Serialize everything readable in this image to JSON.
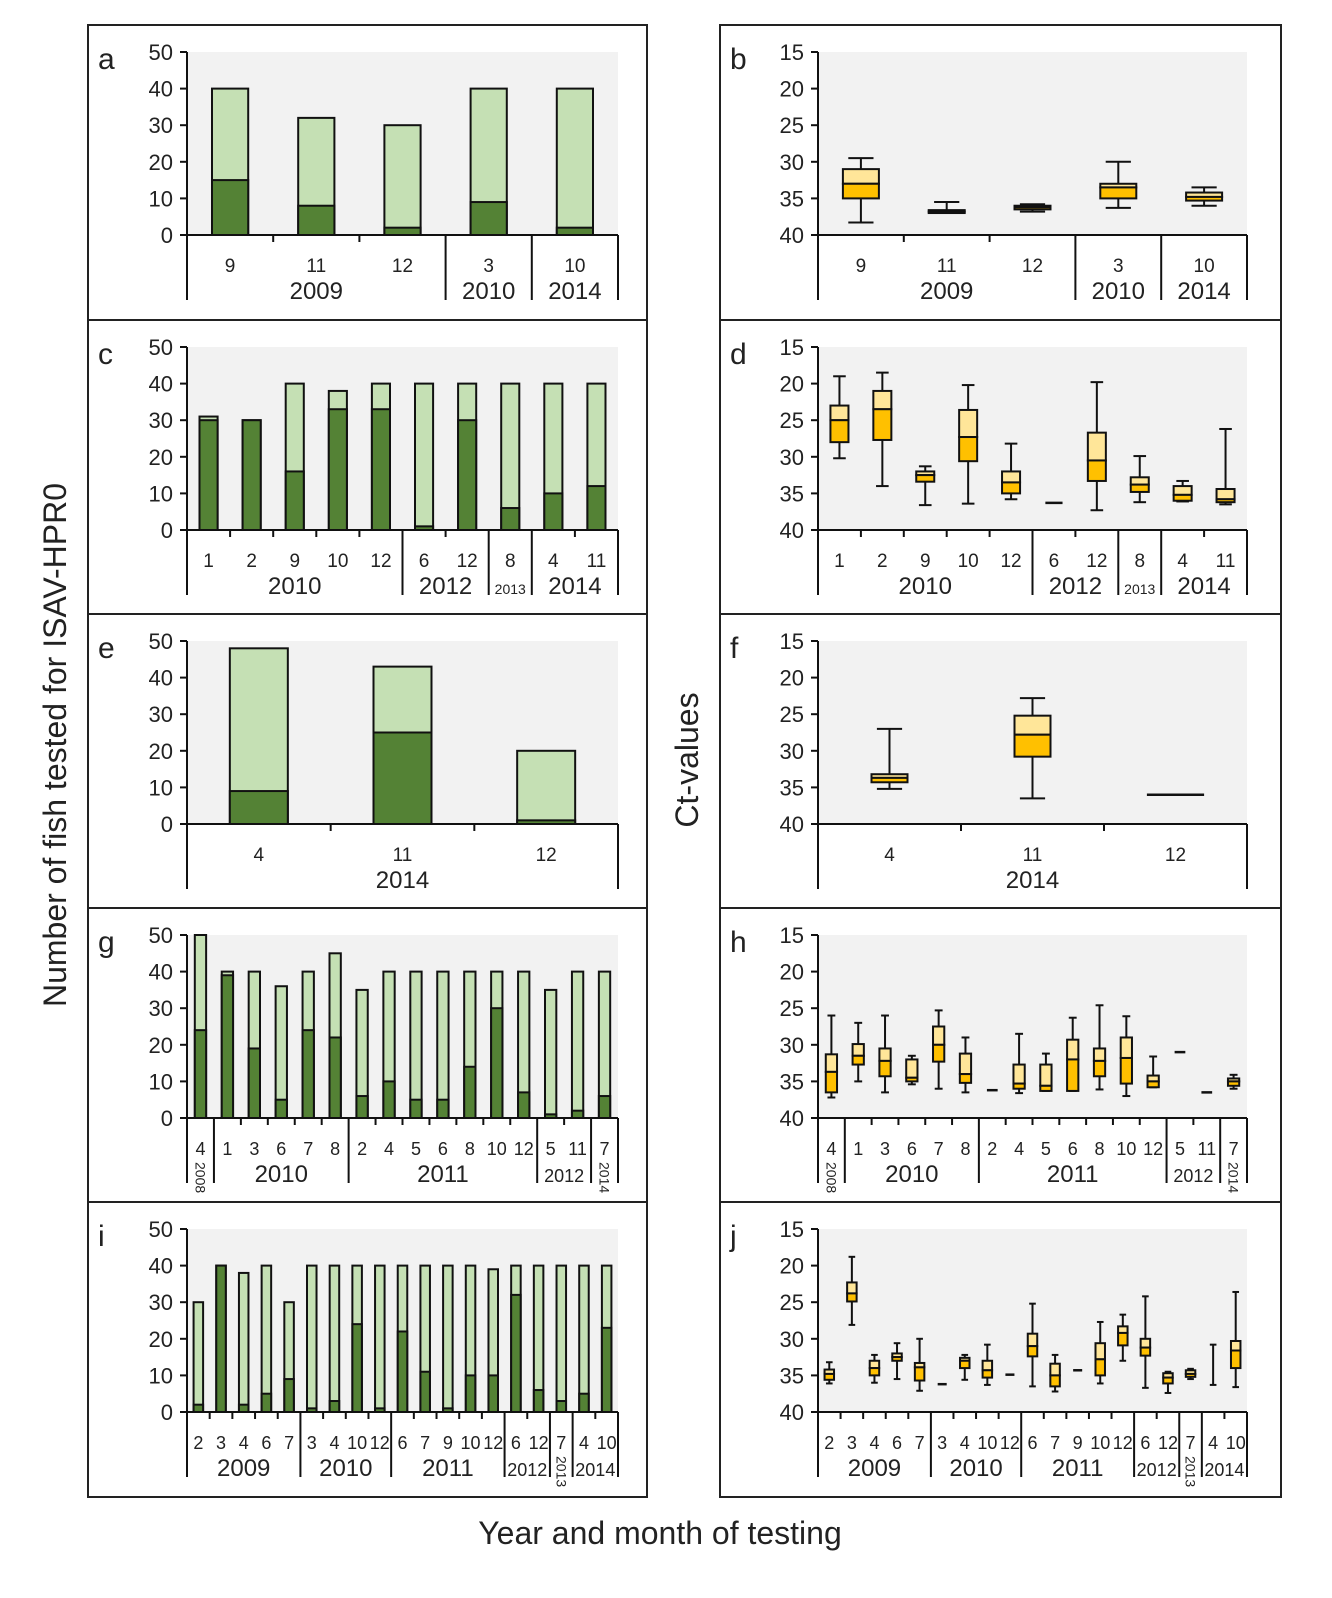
{
  "figure": {
    "left_ylabel": "Number of fish tested for ISAV-HPR0",
    "right_ylabel": "Ct-values",
    "xlabel": "Year and month of testing"
  },
  "colors": {
    "bar_positive": "#548235",
    "bar_total": "#c5e0b4",
    "box_upper": "#ffe699",
    "box_lower": "#ffc000",
    "plot_bg": "#f2f2f2"
  },
  "chart_data": [
    {
      "panel": "a",
      "type": "bar",
      "ylim": [
        0,
        50
      ],
      "yticks": [
        "0",
        "10",
        "20",
        "30",
        "40",
        "50"
      ],
      "groups": [
        {
          "year": "2009",
          "style": "normal",
          "months": [
            "9",
            "11",
            "12"
          ]
        },
        {
          "year": "2010",
          "style": "normal",
          "months": [
            "3"
          ]
        },
        {
          "year": "2014",
          "style": "normal",
          "months": [
            "10"
          ]
        }
      ],
      "series": [
        {
          "name": "tested",
          "values": [
            40,
            32,
            30,
            40,
            40
          ]
        },
        {
          "name": "positive",
          "values": [
            15,
            8,
            2,
            9,
            2
          ]
        }
      ]
    },
    {
      "panel": "b",
      "type": "box",
      "ylim": [
        40,
        15
      ],
      "yticks": [
        "15",
        "20",
        "25",
        "30",
        "35",
        "40"
      ],
      "groups": [
        {
          "year": "2009",
          "style": "normal",
          "months": [
            "9",
            "11",
            "12"
          ]
        },
        {
          "year": "2010",
          "style": "normal",
          "months": [
            "3"
          ]
        },
        {
          "year": "2014",
          "style": "normal",
          "months": [
            "10"
          ]
        }
      ],
      "boxes": [
        [
          29.5,
          31,
          33,
          35,
          38.3
        ],
        [
          35.5,
          36.6,
          36.8,
          37,
          37
        ],
        [
          35.8,
          36,
          36.2,
          36.5,
          36.8
        ],
        [
          30,
          33,
          33.5,
          35,
          36.3
        ],
        [
          33.5,
          34.2,
          34.8,
          35.3,
          36
        ]
      ]
    },
    {
      "panel": "c",
      "type": "bar",
      "ylim": [
        0,
        50
      ],
      "yticks": [
        "0",
        "10",
        "20",
        "30",
        "40",
        "50"
      ],
      "groups": [
        {
          "year": "2010",
          "style": "normal",
          "months": [
            "1",
            "2",
            "9",
            "10",
            "12"
          ]
        },
        {
          "year": "2012",
          "style": "normal",
          "months": [
            "6",
            "12"
          ]
        },
        {
          "year": "2013",
          "style": "small",
          "months": [
            "8"
          ]
        },
        {
          "year": "2014",
          "style": "normal",
          "months": [
            "4",
            "11"
          ]
        }
      ],
      "series": [
        {
          "name": "tested",
          "values": [
            31,
            30,
            40,
            38,
            40,
            40,
            40,
            40,
            40,
            40
          ]
        },
        {
          "name": "positive",
          "values": [
            30,
            30,
            16,
            33,
            33,
            1,
            30,
            6,
            10,
            12
          ]
        }
      ]
    },
    {
      "panel": "d",
      "type": "box",
      "ylim": [
        40,
        15
      ],
      "yticks": [
        "15",
        "20",
        "25",
        "30",
        "35",
        "40"
      ],
      "groups": [
        {
          "year": "2010",
          "style": "normal",
          "months": [
            "1",
            "2",
            "9",
            "10",
            "12"
          ]
        },
        {
          "year": "2012",
          "style": "normal",
          "months": [
            "6",
            "12"
          ]
        },
        {
          "year": "2013",
          "style": "small",
          "months": [
            "8"
          ]
        },
        {
          "year": "2014",
          "style": "normal",
          "months": [
            "4",
            "11"
          ]
        }
      ],
      "boxes": [
        [
          19,
          23,
          25,
          28,
          30.2
        ],
        [
          18.5,
          21,
          23.5,
          27.7,
          34
        ],
        [
          31.3,
          32,
          32.5,
          33.4,
          36.6
        ],
        [
          20.2,
          23.6,
          27.3,
          30.6,
          36.4
        ],
        [
          28.2,
          32,
          33.5,
          35,
          35.8
        ],
        36.3,
        [
          19.8,
          26.7,
          30.5,
          33.3,
          37.3
        ],
        [
          29.9,
          32.8,
          33.8,
          34.8,
          36.2
        ],
        [
          33.3,
          34,
          35.2,
          36,
          36.1
        ],
        [
          26.2,
          34.4,
          35.8,
          36.2,
          36.5
        ]
      ]
    },
    {
      "panel": "e",
      "type": "bar",
      "ylim": [
        0,
        50
      ],
      "yticks": [
        "0",
        "10",
        "20",
        "30",
        "40",
        "50"
      ],
      "groups": [
        {
          "year": "2014",
          "style": "normal",
          "months": [
            "4",
            "11",
            "12"
          ]
        }
      ],
      "series": [
        {
          "name": "tested",
          "values": [
            48,
            43,
            20
          ]
        },
        {
          "name": "positive",
          "values": [
            9,
            25,
            1
          ]
        }
      ]
    },
    {
      "panel": "f",
      "type": "box",
      "ylim": [
        40,
        15
      ],
      "yticks": [
        "15",
        "20",
        "25",
        "30",
        "35",
        "40"
      ],
      "groups": [
        {
          "year": "2014",
          "style": "normal",
          "months": [
            "4",
            "11",
            "12"
          ]
        }
      ],
      "boxes": [
        [
          27,
          33.2,
          33.7,
          34.3,
          35.2
        ],
        [
          22.8,
          25.2,
          27.8,
          30.8,
          36.5
        ],
        36
      ]
    },
    {
      "panel": "g",
      "type": "bar",
      "ylim": [
        0,
        50
      ],
      "yticks": [
        "0",
        "10",
        "20",
        "30",
        "40",
        "50"
      ],
      "groups": [
        {
          "year": "2008",
          "style": "vertical",
          "months": [
            "4"
          ]
        },
        {
          "year": "2010",
          "style": "normal",
          "months": [
            "1",
            "3",
            "6",
            "7",
            "8"
          ]
        },
        {
          "year": "2011",
          "style": "normal",
          "months": [
            "2",
            "4",
            "5",
            "6",
            "8",
            "10",
            "12"
          ]
        },
        {
          "year": "2012",
          "style": "small",
          "months": [
            "5",
            "11"
          ]
        },
        {
          "year": "2014",
          "style": "vertical",
          "months": [
            "7"
          ]
        }
      ],
      "series": [
        {
          "name": "tested",
          "values": [
            50,
            40,
            40,
            36,
            40,
            45,
            35,
            40,
            40,
            40,
            40,
            40,
            40,
            35,
            40,
            40
          ]
        },
        {
          "name": "positive",
          "values": [
            24,
            39,
            19,
            5,
            24,
            22,
            6,
            10,
            5,
            5,
            14,
            30,
            7,
            1,
            2,
            6
          ]
        }
      ]
    },
    {
      "panel": "h",
      "type": "box",
      "ylim": [
        40,
        15
      ],
      "yticks": [
        "15",
        "20",
        "25",
        "30",
        "35",
        "40"
      ],
      "groups": [
        {
          "year": "2008",
          "style": "vertical",
          "months": [
            "4"
          ]
        },
        {
          "year": "2010",
          "style": "normal",
          "months": [
            "1",
            "3",
            "6",
            "7",
            "8"
          ]
        },
        {
          "year": "2011",
          "style": "normal",
          "months": [
            "2",
            "4",
            "5",
            "6",
            "8",
            "10",
            "12"
          ]
        },
        {
          "year": "2012",
          "style": "small",
          "months": [
            "5",
            "11"
          ]
        },
        {
          "year": "2014",
          "style": "vertical",
          "months": [
            "7"
          ]
        }
      ],
      "boxes": [
        [
          26,
          31.3,
          33.7,
          36.5,
          37.2
        ],
        [
          27,
          29.9,
          31.5,
          32.7,
          35
        ],
        [
          26,
          30.5,
          32.2,
          34.3,
          36.5
        ],
        [
          31.5,
          32,
          34.5,
          35,
          35.4
        ],
        [
          25.3,
          27.5,
          30,
          32.3,
          36
        ],
        [
          29,
          31.2,
          34,
          35.2,
          36.5
        ],
        36.2,
        [
          28.5,
          32.7,
          35.3,
          36,
          36.6
        ],
        [
          31.2,
          32.7,
          35.6,
          36.3,
          36.3
        ],
        [
          26.3,
          29.3,
          32,
          36.3,
          36.3
        ],
        [
          24.6,
          30.5,
          32.2,
          34.3,
          36.1
        ],
        [
          26.1,
          29,
          31.8,
          35.3,
          37
        ],
        [
          31.6,
          34.2,
          35,
          35.8,
          35.8
        ],
        31,
        36.5,
        [
          34.1,
          34.6,
          35,
          35.6,
          36
        ]
      ]
    },
    {
      "panel": "i",
      "type": "bar",
      "ylim": [
        0,
        50
      ],
      "yticks": [
        "0",
        "10",
        "20",
        "30",
        "40",
        "50"
      ],
      "groups": [
        {
          "year": "2009",
          "style": "normal",
          "months": [
            "2",
            "3",
            "4",
            "6",
            "7"
          ]
        },
        {
          "year": "2010",
          "style": "normal",
          "months": [
            "3",
            "4",
            "10",
            "12"
          ]
        },
        {
          "year": "2011",
          "style": "normal",
          "months": [
            "6",
            "7",
            "9",
            "10",
            "12"
          ]
        },
        {
          "year": "2012",
          "style": "small",
          "months": [
            "6",
            "12"
          ]
        },
        {
          "year": "2013",
          "style": "vertical",
          "months": [
            "7"
          ]
        },
        {
          "year": "2014",
          "style": "small",
          "months": [
            "4",
            "10"
          ]
        }
      ],
      "series": [
        {
          "name": "tested",
          "values": [
            30,
            40,
            38,
            40,
            30,
            40,
            40,
            40,
            40,
            40,
            40,
            40,
            40,
            39,
            40,
            40,
            40,
            40,
            40
          ]
        },
        {
          "name": "positive",
          "values": [
            2,
            40,
            2,
            5,
            9,
            1,
            3,
            24,
            1,
            22,
            11,
            1,
            10,
            10,
            32,
            6,
            3,
            5,
            23
          ]
        }
      ]
    },
    {
      "panel": "j",
      "type": "box",
      "ylim": [
        40,
        15
      ],
      "yticks": [
        "15",
        "20",
        "25",
        "30",
        "35",
        "40"
      ],
      "groups": [
        {
          "year": "2009",
          "style": "normal",
          "months": [
            "2",
            "3",
            "4",
            "6",
            "7"
          ]
        },
        {
          "year": "2010",
          "style": "normal",
          "months": [
            "3",
            "4",
            "10",
            "12"
          ]
        },
        {
          "year": "2011",
          "style": "normal",
          "months": [
            "6",
            "7",
            "9",
            "10",
            "12"
          ]
        },
        {
          "year": "2012",
          "style": "small",
          "months": [
            "6",
            "12"
          ]
        },
        {
          "year": "2013",
          "style": "vertical",
          "months": [
            "7"
          ]
        },
        {
          "year": "2014",
          "style": "small",
          "months": [
            "4",
            "10"
          ]
        }
      ],
      "boxes": [
        [
          33.2,
          34.2,
          34.8,
          35.6,
          36.1
        ],
        [
          18.8,
          22.3,
          23.8,
          24.9,
          28.1
        ],
        [
          32.2,
          33,
          34,
          35,
          36
        ],
        [
          30.6,
          32,
          32.5,
          33,
          35.5
        ],
        [
          30,
          33.3,
          33.9,
          35.7,
          37.1
        ],
        36.2,
        [
          32.2,
          32.6,
          33,
          34,
          35.6
        ],
        [
          30.8,
          33,
          34.3,
          35.3,
          36.3
        ],
        34.9,
        [
          25.2,
          29.3,
          31,
          32.4,
          36.5
        ],
        [
          32.2,
          33.4,
          35,
          36.5,
          37.2
        ],
        34.3,
        [
          27.7,
          30.6,
          32.8,
          35,
          36.1
        ],
        [
          26.7,
          28.3,
          29.2,
          30.9,
          33
        ],
        [
          24.2,
          30,
          31.2,
          32.3,
          36.7
        ],
        [
          34.5,
          34.7,
          35.3,
          36.1,
          37.4
        ],
        [
          34.1,
          34.3,
          34.8,
          35.2,
          35.5
        ],
        [
          30.8,
          36.3,
          36.3,
          36.3,
          36.3
        ],
        [
          23.6,
          30.3,
          31.6,
          34,
          36.6
        ]
      ]
    }
  ]
}
